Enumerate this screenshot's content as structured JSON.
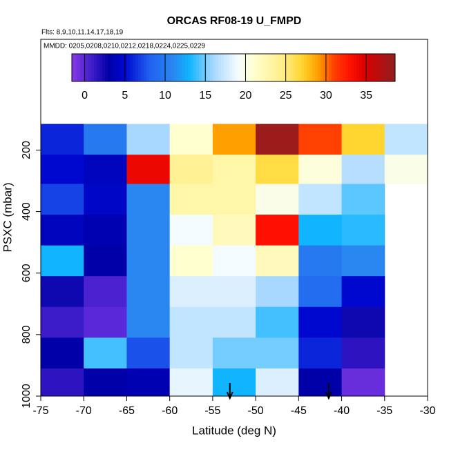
{
  "chart_data": {
    "type": "heatmap",
    "title": "ORCAS RF08-19 U_FMPD",
    "subtitle": "Flts: 8,9,10,11,14,17,18,19",
    "annotation": "MMDD: 0205,0208,0210,0212,0218,0224,0225,0229",
    "xlabel": "Latitude (deg N)",
    "ylabel": "PSXC (mbar)",
    "xlim": [
      -75,
      -30
    ],
    "xticks": [
      -75,
      -70,
      -65,
      -60,
      -55,
      -50,
      -45,
      -40,
      -35,
      -30
    ],
    "ylim": [
      1000,
      -160
    ],
    "yticks": [
      200,
      400,
      600,
      800,
      1000
    ],
    "x_edges": [
      -75,
      -70,
      -65,
      -60,
      -55,
      -50,
      -45,
      -40,
      -35,
      -30
    ],
    "y_edges": [
      115,
      215,
      310,
      410,
      510,
      610,
      710,
      810,
      910,
      1000
    ],
    "values": [
      [
        6,
        10,
        16,
        21,
        29,
        38,
        31,
        27,
        17
      ],
      [
        5,
        4,
        34,
        24,
        23,
        26.5,
        20.5,
        16.5,
        20
      ],
      [
        7,
        4.5,
        11,
        23,
        23,
        20,
        17,
        14.5,
        null
      ],
      [
        4,
        3.5,
        11,
        19,
        22,
        33,
        13,
        13.5,
        null
      ],
      [
        13,
        3,
        11,
        21,
        19,
        22,
        10,
        11,
        null
      ],
      [
        2.5,
        0.5,
        11,
        18,
        18,
        16,
        9,
        5,
        null
      ],
      [
        1,
        0,
        11,
        17,
        17,
        14,
        5,
        2.5,
        null
      ],
      [
        3,
        14,
        7.5,
        17,
        15,
        15,
        6,
        1.5,
        null
      ],
      [
        1.5,
        3,
        3.5,
        18.5,
        13,
        18,
        3,
        -0.5,
        null
      ]
    ],
    "colorbar_lim": [
      -1.6,
      38.6
    ],
    "colorbar_ticks": [
      0,
      5,
      10,
      15,
      20,
      25,
      30,
      35
    ],
    "colorscale": [
      [
        -1.6,
        "#8a3ae6"
      ],
      [
        0,
        "#5a28d8"
      ],
      [
        3,
        "#0000a8"
      ],
      [
        5,
        "#0008d0"
      ],
      [
        8,
        "#2060f0"
      ],
      [
        11,
        "#2a86f0"
      ],
      [
        13,
        "#10b4ff"
      ],
      [
        16,
        "#a8d8ff"
      ],
      [
        19,
        "#f4fbff"
      ],
      [
        21,
        "#ffffd0"
      ],
      [
        25,
        "#ffec80"
      ],
      [
        27,
        "#ffd530"
      ],
      [
        29,
        "#ffa000"
      ],
      [
        31,
        "#ff4000"
      ],
      [
        33,
        "#ff1000"
      ],
      [
        35,
        "#d80000"
      ],
      [
        38.6,
        "#902020"
      ]
    ],
    "arrows_x": [
      -53,
      -41.5
    ]
  }
}
